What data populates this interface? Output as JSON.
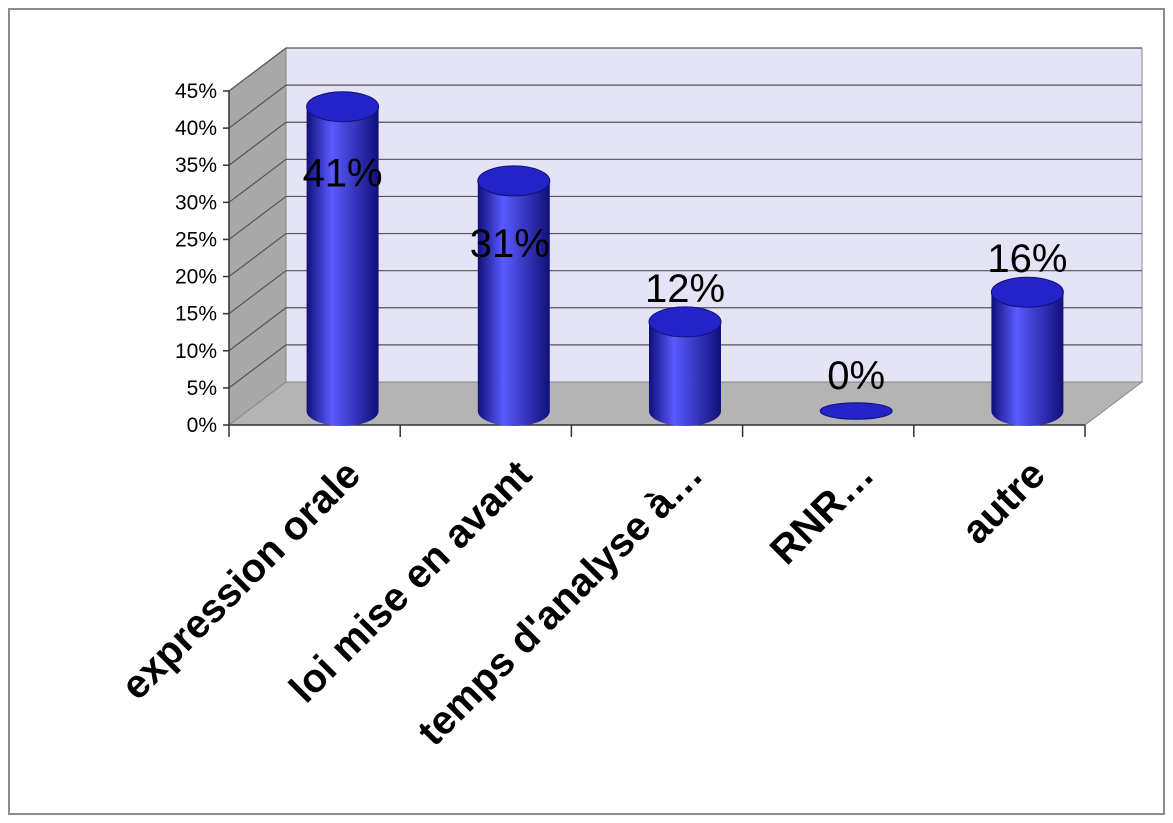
{
  "chart_data": {
    "type": "bar",
    "style": "3d-cylinder",
    "categories": [
      "expression orale",
      "loi mise en avant",
      "temps d'analyse à…",
      "RNR…",
      "autre"
    ],
    "values": [
      41,
      31,
      12,
      0,
      16
    ],
    "data_labels": [
      "41%",
      "31%",
      "12%",
      "0%",
      "16%"
    ],
    "ylim": [
      0,
      45
    ],
    "ytick_step": 5,
    "ytick_labels": [
      "0%",
      "5%",
      "10%",
      "15%",
      "20%",
      "25%",
      "30%",
      "35%",
      "40%",
      "45%"
    ],
    "grid": true,
    "legend": "none",
    "colors": {
      "bar": "#2323c8",
      "bar_light": "#5a5aff",
      "bar_dark": "#10107a",
      "back_wall": "#e4e4f6",
      "side_wall": "#a8a8a8",
      "floor": "#b4b4b4",
      "grid": "#555555"
    }
  }
}
